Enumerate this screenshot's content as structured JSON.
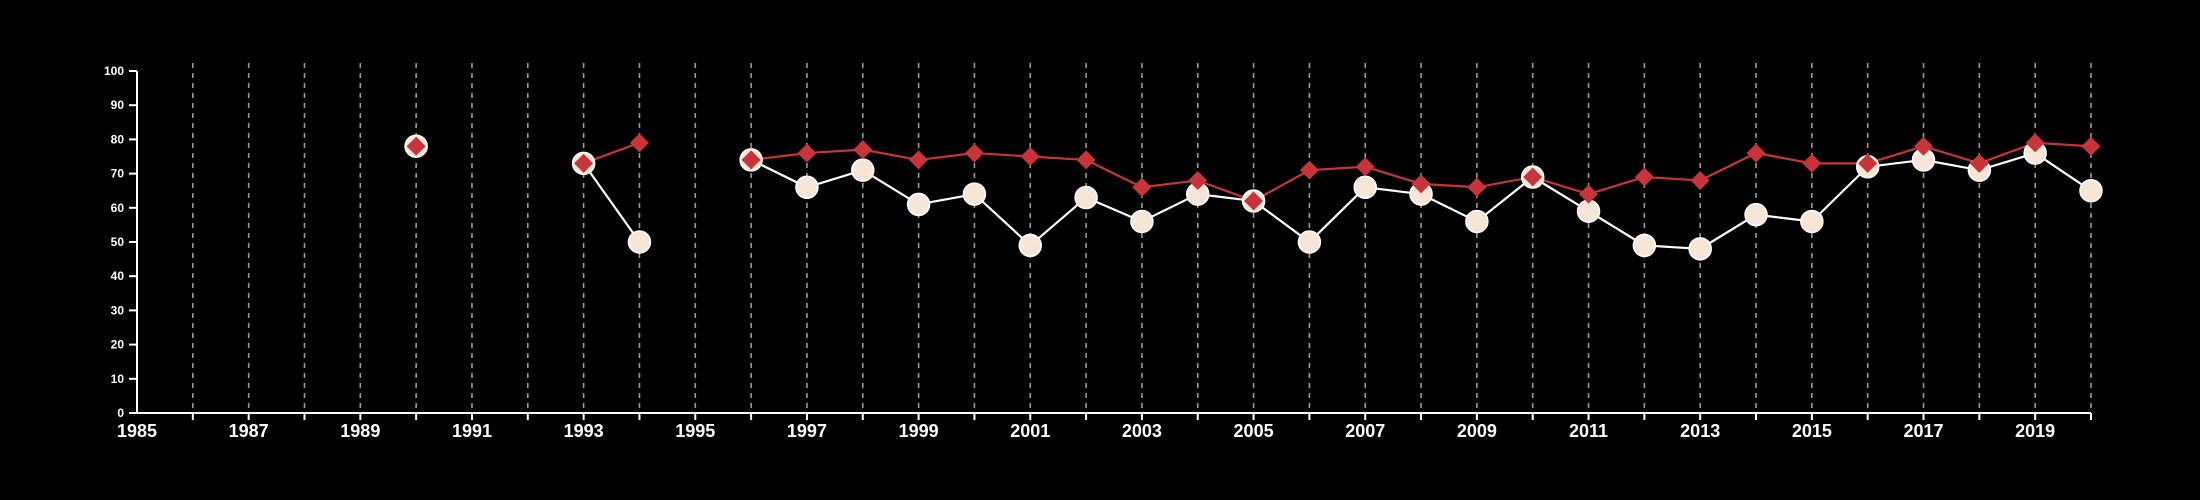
{
  "colors": {
    "background": "#000000",
    "axis": "#ffffff",
    "grid": "#9a9a9a",
    "series_red": "#c8343a",
    "series_white_fill": "#f5e6d8",
    "series_white_line": "#ffffff"
  },
  "chart_data": {
    "type": "line",
    "title": "",
    "xlabel": "",
    "ylabel": "",
    "xlim": [
      1985,
      2020
    ],
    "ylim": [
      0,
      100
    ],
    "x_ticks": [
      1985,
      1987,
      1989,
      1991,
      1993,
      1995,
      1997,
      1999,
      2001,
      2003,
      2005,
      2007,
      2009,
      2011,
      2013,
      2015,
      2017,
      2019
    ],
    "x_tick_labels": [
      "1985",
      "1987",
      "1989",
      "1991",
      "1993",
      "1995",
      "1997",
      "1999",
      "2001",
      "2003",
      "2005",
      "2007",
      "2009",
      "2011",
      "2013",
      "2015",
      "2017",
      "2019"
    ],
    "y_ticks": [
      0,
      10,
      20,
      30,
      40,
      50,
      60,
      70,
      80,
      90,
      100
    ],
    "y_tick_labels": [
      "0",
      "10",
      "20",
      "30",
      "40",
      "50",
      "60",
      "70",
      "80",
      "90",
      "100"
    ],
    "grid": "vertical dashed lines at every year",
    "x": [
      1990,
      1993,
      1994,
      1996,
      1997,
      1998,
      1999,
      2000,
      2001,
      2002,
      2003,
      2004,
      2005,
      2006,
      2007,
      2008,
      2009,
      2010,
      2011,
      2012,
      2013,
      2014,
      2015,
      2016,
      2017,
      2018,
      2019,
      2020
    ],
    "series": [
      {
        "marker": "diamond",
        "color": "#c8343a",
        "values": [
          78,
          73,
          79,
          74,
          76,
          77,
          74,
          76,
          75,
          74,
          66,
          68,
          62,
          71,
          72,
          67,
          66,
          69,
          64,
          69,
          68,
          76,
          73,
          73,
          78,
          73,
          79,
          78
        ]
      },
      {
        "marker": "circle",
        "color": "#f5e6d8",
        "values": [
          78,
          73,
          50,
          74,
          66,
          71,
          61,
          64,
          49,
          63,
          56,
          64,
          62,
          50,
          66,
          64,
          56,
          69,
          59,
          49,
          48,
          58,
          56,
          72,
          74,
          71,
          76,
          65
        ]
      }
    ]
  }
}
